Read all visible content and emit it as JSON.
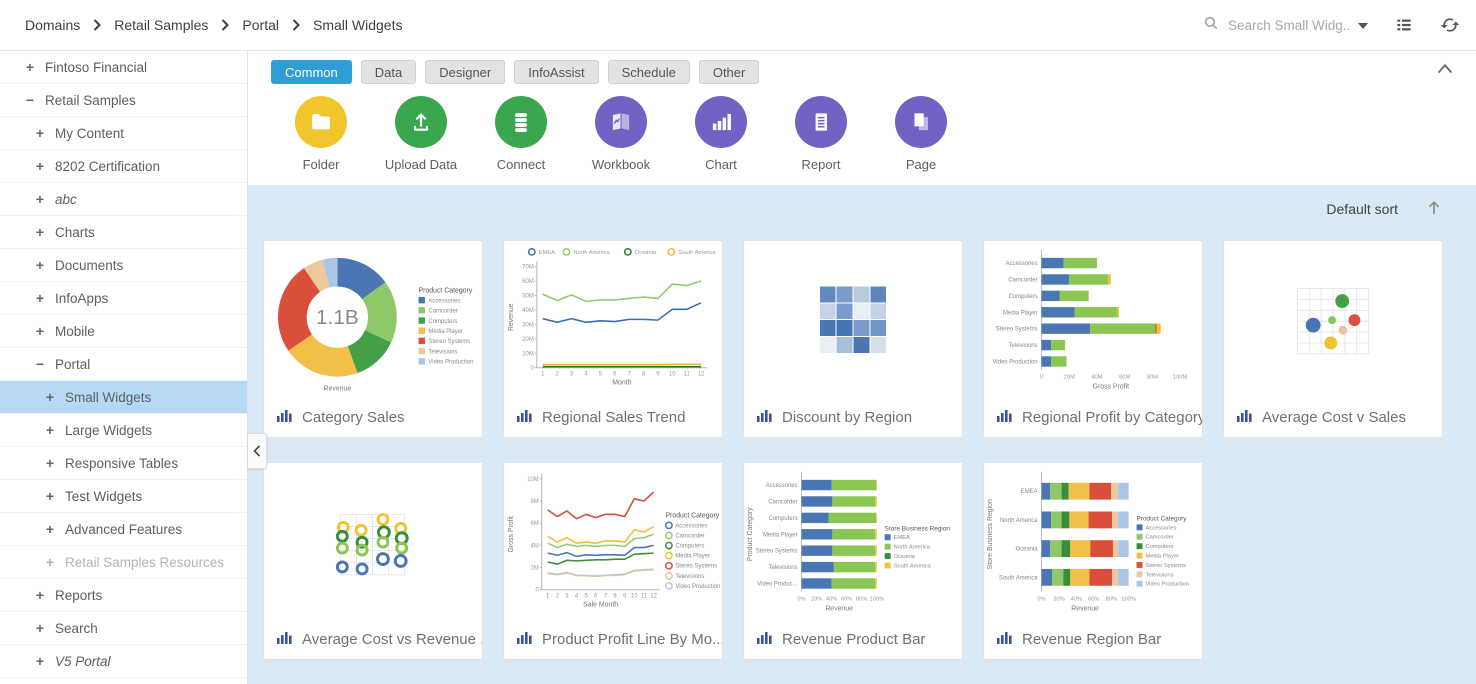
{
  "topbar": {
    "breadcrumb": [
      "Domains",
      "Retail Samples",
      "Portal",
      "Small Widgets"
    ],
    "search_placeholder": "Search Small Widg...",
    "icons": [
      "search-icon",
      "dropdown-caret-icon",
      "list-view-icon",
      "refresh-icon"
    ]
  },
  "sidebar": {
    "items": [
      {
        "label": "Fintoso Financial",
        "expander": "+",
        "level": 1
      },
      {
        "label": "Retail Samples",
        "expander": "-",
        "level": 1
      },
      {
        "label": "My Content",
        "expander": "+",
        "level": 2
      },
      {
        "label": "8202 Certification",
        "expander": "+",
        "level": 2
      },
      {
        "label": "abc",
        "expander": "+",
        "level": 2,
        "italic": true
      },
      {
        "label": "Charts",
        "expander": "+",
        "level": 2
      },
      {
        "label": "Documents",
        "expander": "+",
        "level": 2
      },
      {
        "label": "InfoApps",
        "expander": "+",
        "level": 2
      },
      {
        "label": "Mobile",
        "expander": "+",
        "level": 2
      },
      {
        "label": "Portal",
        "expander": "-",
        "level": 2
      },
      {
        "label": "Small Widgets",
        "expander": "+",
        "level": 3,
        "selected": true
      },
      {
        "label": "Large Widgets",
        "expander": "+",
        "level": 3
      },
      {
        "label": "Responsive Tables",
        "expander": "+",
        "level": 3
      },
      {
        "label": "Test Widgets",
        "expander": "+",
        "level": 3
      },
      {
        "label": "Advanced Features",
        "expander": "+",
        "level": 3
      },
      {
        "label": "Retail Samples Resources",
        "expander": "+",
        "level": 3,
        "disabled": true
      },
      {
        "label": "Reports",
        "expander": "+",
        "level": 2
      },
      {
        "label": "Search",
        "expander": "+",
        "level": 2
      },
      {
        "label": "V5 Portal",
        "expander": "+",
        "level": 2,
        "italic": true
      }
    ]
  },
  "toolbar": {
    "tabs": [
      {
        "label": "Common",
        "active": true
      },
      {
        "label": "Data"
      },
      {
        "label": "Designer"
      },
      {
        "label": "InfoAssist"
      },
      {
        "label": "Schedule"
      },
      {
        "label": "Other"
      }
    ],
    "actions": [
      {
        "label": "Folder",
        "icon": "folder-icon",
        "color": "#f0c62c"
      },
      {
        "label": "Upload Data",
        "icon": "upload-icon",
        "color": "#3aa64d"
      },
      {
        "label": "Connect",
        "icon": "database-icon",
        "color": "#3aa64d"
      },
      {
        "label": "Workbook",
        "icon": "workbook-icon",
        "color": "#7163c3"
      },
      {
        "label": "Chart",
        "icon": "chart-icon",
        "color": "#7163c3"
      },
      {
        "label": "Report",
        "icon": "report-icon",
        "color": "#7163c3"
      },
      {
        "label": "Page",
        "icon": "page-icon",
        "color": "#7163c3"
      }
    ]
  },
  "content": {
    "sort_label": "Default sort",
    "cards": [
      {
        "title": "Category Sales",
        "chart": {
          "type": "donut",
          "center_label": "1.1B",
          "axis_label": "Revenue",
          "legend_title": "Product Category",
          "slices": [
            {
              "label": "Accessories",
              "value": 15,
              "color": "#4a76b4"
            },
            {
              "label": "Camcorder",
              "value": 17,
              "color": "#8ec868"
            },
            {
              "label": "Computers",
              "value": 12.5,
              "color": "#43a047"
            },
            {
              "label": "Media Player",
              "value": 21,
              "color": "#f3bf4b"
            },
            {
              "label": "Stereo Systems",
              "value": 25,
              "color": "#d94f3c"
            },
            {
              "label": "Televisions",
              "value": 5.5,
              "color": "#ebc89e"
            },
            {
              "label": "Video Production",
              "value": 4,
              "color": "#a9c6e4"
            }
          ]
        }
      },
      {
        "title": "Regional Sales Trend",
        "chart": {
          "type": "line",
          "legend_pos": "top",
          "ylabel": "Revenue",
          "xlabel": "Month",
          "ymax": 70,
          "yticks": [
            "0",
            "10M",
            "20M",
            "30M",
            "40M",
            "50M",
            "60M",
            "70M"
          ],
          "x": [
            "1",
            "2",
            "3",
            "4",
            "5",
            "6",
            "7",
            "8",
            "9",
            "10",
            "11",
            "12"
          ],
          "series": [
            {
              "name": "EMEA",
              "color": "#3c6cae",
              "values": [
                34,
                31.5,
                34,
                31.5,
                32.5,
                32,
                33.5,
                33.5,
                33,
                40.5,
                40.5,
                45
              ]
            },
            {
              "name": "North America",
              "color": "#94c973",
              "values": [
                51,
                46.5,
                50.5,
                46,
                47,
                47,
                48,
                49,
                48,
                58,
                57,
                60
              ]
            },
            {
              "name": "Oceania",
              "color": "#2e7d32",
              "values": [
                0.7,
                0.7,
                0.7,
                0.7,
                0.7,
                0.7,
                0.7,
                0.7,
                0.7,
                0.7,
                0.7,
                0.7
              ]
            },
            {
              "name": "South America",
              "color": "#f0b840",
              "values": [
                2.2,
                2.2,
                2.2,
                2.2,
                2.2,
                2.2,
                2.2,
                2.2,
                2.2,
                2.4,
                2.4,
                2.4
              ]
            }
          ]
        }
      },
      {
        "title": "Discount by Region",
        "chart": {
          "type": "heatmap",
          "rows": [
            [
              "#6189c1",
              "#7b9cc9",
              "#b9cade",
              "#5d86c0"
            ],
            [
              "#c6d3e6",
              "#7b9cc9",
              "#e9eef5",
              "#c3d1e4"
            ],
            [
              "#4a76b4",
              "#4773b2",
              "#7b9cc9",
              "#6f94c7"
            ],
            [
              "#eaeef5",
              "#a9bedb",
              "#4a76b4",
              "#d7dfec"
            ]
          ]
        }
      },
      {
        "title": "Regional Profit by Category",
        "chart": {
          "type": "hbar",
          "ylabels": [
            "Accessories",
            "Camcorder",
            "Computers",
            "Media Player",
            "Stereo Systems",
            "Televisions",
            "Video Production"
          ],
          "xlabel": "Gross Profit",
          "xmax": 100,
          "xticks": [
            "0",
            "20M",
            "40M",
            "60M",
            "80M",
            "100M"
          ],
          "colors": [
            "#4a76b4",
            "#8bc653",
            "#d8503f",
            "#f0c330"
          ],
          "rows": [
            [
              16,
              24,
              0,
              0
            ],
            [
              20,
              28,
              0,
              2
            ],
            [
              13,
              21,
              0,
              0
            ],
            [
              24,
              31,
              0,
              1
            ],
            [
              35,
              47,
              1,
              3
            ],
            [
              7,
              10,
              0,
              0
            ],
            [
              7,
              11,
              0,
              0
            ]
          ]
        }
      },
      {
        "title": "Average Cost v Sales",
        "chart": {
          "type": "scatter",
          "marker": "dot",
          "grid": {
            "cols": 6,
            "rows": 6
          },
          "points": [
            {
              "x": 0.629,
              "y": 0.192,
              "r": 7,
              "color": "#43a047"
            },
            {
              "x": 0.222,
              "y": 0.561,
              "r": 7.5,
              "color": "#4a76b4"
            },
            {
              "x": 0.486,
              "y": 0.485,
              "r": 4,
              "color": "#8bc653"
            },
            {
              "x": 0.801,
              "y": 0.485,
              "r": 6,
              "color": "#d8503f"
            },
            {
              "x": 0.639,
              "y": 0.636,
              "r": 4.5,
              "color": "#e8c49c"
            },
            {
              "x": 0.468,
              "y": 0.833,
              "r": 6.5,
              "color": "#f0c330"
            }
          ]
        }
      },
      {
        "title": "Average Cost vs Revenue ...",
        "chart": {
          "type": "scatter",
          "marker": "ring",
          "grid": {
            "cols": 4,
            "rows": 5
          },
          "points": [
            {
              "x": 0.046,
              "y": 0.213,
              "r": 5,
              "color": "#f0c330"
            },
            {
              "x": 0.323,
              "y": 0.262,
              "r": 5,
              "color": "#f0c330"
            },
            {
              "x": 0.662,
              "y": 0.082,
              "r": 5,
              "color": "#f0c330"
            },
            {
              "x": 0.938,
              "y": 0.23,
              "r": 5,
              "color": "#f0c330"
            },
            {
              "x": 0.031,
              "y": 0.361,
              "r": 5,
              "color": "#388e3c"
            },
            {
              "x": 0.338,
              "y": 0.459,
              "r": 5,
              "color": "#388e3c"
            },
            {
              "x": 0.677,
              "y": 0.295,
              "r": 5.5,
              "color": "#388e3c"
            },
            {
              "x": 0.954,
              "y": 0.393,
              "r": 5.5,
              "color": "#388e3c"
            },
            {
              "x": 0.031,
              "y": 0.557,
              "r": 5,
              "color": "#8bc653"
            },
            {
              "x": 0.338,
              "y": 0.59,
              "r": 5,
              "color": "#8bc653"
            },
            {
              "x": 0.662,
              "y": 0.459,
              "r": 5,
              "color": "#8bc653"
            },
            {
              "x": 0.954,
              "y": 0.557,
              "r": 5,
              "color": "#8bc653"
            },
            {
              "x": 0.031,
              "y": 0.869,
              "r": 5,
              "color": "#4a76b4"
            },
            {
              "x": 0.338,
              "y": 0.902,
              "r": 5,
              "color": "#4a76b4"
            },
            {
              "x": 0.662,
              "y": 0.738,
              "r": 5.5,
              "color": "#4a76b4"
            },
            {
              "x": 0.938,
              "y": 0.77,
              "r": 5.5,
              "color": "#4a76b4"
            }
          ]
        }
      },
      {
        "title": "Product Profit Line By Mo...",
        "chart": {
          "type": "line",
          "legend_pos": "right",
          "legend_title": "Product Category",
          "ylabel": "Gross Profit",
          "xlabel": "Sale Month",
          "ymax": 10,
          "yticks": [
            "0",
            "2M",
            "4M",
            "6M",
            "8M",
            "10M"
          ],
          "x": [
            "1",
            "2",
            "3",
            "4",
            "5",
            "6",
            "7",
            "8",
            "9",
            "10",
            "11",
            "12"
          ],
          "legend": [
            {
              "label": "Accessories",
              "color": "#4a76b4"
            },
            {
              "label": "Camcorder",
              "color": "#97cb6e"
            },
            {
              "label": "Computers",
              "color": "#3b8f3f"
            },
            {
              "label": "Media Player",
              "color": "#f0c03c"
            },
            {
              "label": "Stereo Systems",
              "color": "#d0503c"
            },
            {
              "label": "Televisions",
              "color": "#e4c59e"
            },
            {
              "label": "Video Production",
              "color": "#c9c9c2"
            }
          ],
          "series": [
            {
              "name": "Stereo Systems",
              "color": "#d0503c",
              "values": [
                7.2,
                6.6,
                7.1,
                6.4,
                6.8,
                6.5,
                6.8,
                6.8,
                6.6,
                8.2,
                8.0,
                8.8
              ]
            },
            {
              "name": "Media Player",
              "color": "#f0c03c",
              "values": [
                4.8,
                4.3,
                4.7,
                4.2,
                4.3,
                4.2,
                4.4,
                4.4,
                4.3,
                5.4,
                5.2,
                5.7
              ]
            },
            {
              "name": "Camcorder",
              "color": "#97cb6e",
              "values": [
                4.2,
                3.8,
                4.1,
                3.9,
                4.0,
                3.9,
                4.0,
                4.0,
                3.9,
                4.6,
                4.7,
                5.0
              ]
            },
            {
              "name": "Accessories",
              "color": "#4a76b4",
              "values": [
                3.3,
                3.1,
                3.35,
                3.0,
                3.15,
                3.1,
                3.15,
                3.15,
                3.1,
                3.8,
                3.8,
                4.0
              ]
            },
            {
              "name": "Computers",
              "color": "#3b8f3f",
              "values": [
                2.5,
                2.3,
                2.65,
                2.6,
                2.65,
                2.7,
                2.7,
                2.75,
                2.75,
                3.2,
                3.25,
                3.3
              ]
            },
            {
              "name": "Televisions",
              "color": "#e4c59e",
              "values": [
                1.45,
                1.35,
                1.5,
                1.28,
                1.25,
                1.22,
                1.28,
                1.3,
                1.35,
                1.7,
                1.75,
                1.8
              ]
            },
            {
              "name": "Video Production",
              "color": "#c9c9c2",
              "values": [
                1.5,
                1.4,
                1.55,
                1.3,
                1.3,
                1.25,
                1.3,
                1.35,
                1.4,
                1.75,
                1.8,
                1.85
              ]
            }
          ]
        }
      },
      {
        "title": "Revenue Product Bar",
        "chart": {
          "type": "hbar",
          "ylabel_axis": "Product Category",
          "ylabels": [
            "Accessories",
            "Camcorder",
            "Computers",
            "Media Player",
            "Stereo Systems",
            "Televisions",
            "Video Produc..."
          ],
          "xlabel": "Revenue",
          "xmax": 100,
          "xticks": [
            "0%",
            "20%",
            "40%",
            "60%",
            "80%",
            "100%"
          ],
          "colors": [
            "#4a76b4",
            "#8bc653",
            "#388e3c",
            "#f0c330"
          ],
          "legend_title": "Store Business Region",
          "legend": [
            "EMEA",
            "North America",
            "Oceania",
            "South America"
          ],
          "rows": [
            [
              40,
              59,
              0,
              1
            ],
            [
              41,
              57,
              0,
              2
            ],
            [
              36,
              63,
              0,
              1
            ],
            [
              41,
              57,
              0,
              2
            ],
            [
              41,
              57,
              0,
              2
            ],
            [
              43,
              55,
              0,
              2
            ],
            [
              40,
              58,
              0,
              2
            ]
          ]
        }
      },
      {
        "title": "Revenue Region Bar",
        "chart": {
          "type": "hbar",
          "ylabel_axis": "Store Business Region",
          "ylabels": [
            "EMEA",
            "North America",
            "Oceania",
            "South America"
          ],
          "xlabel": "Revenue",
          "xmax": 100,
          "xticks": [
            "0%",
            "20%",
            "40%",
            "60%",
            "80%",
            "100%"
          ],
          "colors": [
            "#4a76b4",
            "#8ec868",
            "#388e3c",
            "#f3bf4b",
            "#d94f3c",
            "#ebc89e",
            "#a9c6e4"
          ],
          "legend_title": "Product Category",
          "legend": [
            "Accessories",
            "Camcorder",
            "Computers",
            "Media Player",
            "Stereo Systems",
            "Televisions",
            "Video Production"
          ],
          "rows": [
            [
              10,
              13,
              8,
              24,
              25,
              8,
              12
            ],
            [
              11,
              12,
              9,
              22,
              27,
              7,
              12
            ],
            [
              10,
              13,
              10,
              23,
              26,
              6,
              12
            ],
            [
              12,
              13,
              8,
              22,
              26,
              7,
              12
            ]
          ]
        }
      }
    ]
  }
}
